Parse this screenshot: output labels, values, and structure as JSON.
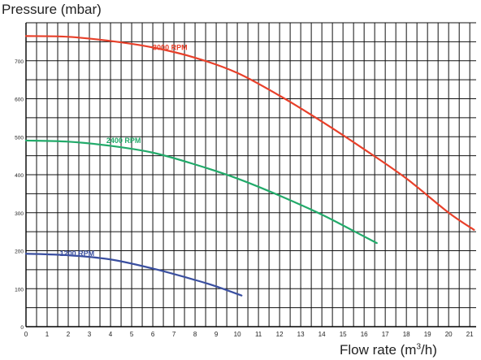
{
  "chart_data": {
    "type": "line",
    "title": "Pressure (mbar)",
    "xlabel": {
      "prefix": "Flow rate (m",
      "sup": "3",
      "suffix": "/h)"
    },
    "ylabel": "",
    "xlim": [
      0,
      21.3
    ],
    "ylim": [
      0,
      800
    ],
    "x_ticks": [
      "0",
      "1",
      "2",
      "3",
      "4",
      "5",
      "6",
      "7",
      "8",
      "9",
      "10",
      "11",
      "12",
      "13",
      "14",
      "15",
      "16",
      "17",
      "18",
      "19",
      "20",
      "21"
    ],
    "y_ticks": [
      "0",
      "100",
      "200",
      "300",
      "400",
      "500",
      "600",
      "700"
    ],
    "x_grid_step": 0.5,
    "y_grid_step": 50,
    "grid": true,
    "legend": "inline labels",
    "series": [
      {
        "name": "3000 RPM",
        "color": "#e8402a",
        "points": [
          [
            0,
            765
          ],
          [
            2,
            763
          ],
          [
            4,
            752
          ],
          [
            6,
            735
          ],
          [
            8,
            708
          ],
          [
            10,
            668
          ],
          [
            12,
            608
          ],
          [
            14,
            540
          ],
          [
            16,
            467
          ],
          [
            18,
            390
          ],
          [
            20,
            300
          ],
          [
            21.2,
            255
          ]
        ]
      },
      {
        "name": "2400 RPM",
        "color": "#22aa6a",
        "points": [
          [
            0,
            490
          ],
          [
            2,
            487
          ],
          [
            4,
            476
          ],
          [
            6,
            458
          ],
          [
            8,
            427
          ],
          [
            10,
            390
          ],
          [
            12,
            345
          ],
          [
            14,
            295
          ],
          [
            15.5,
            252
          ],
          [
            16.6,
            220
          ]
        ]
      },
      {
        "name": "1200 RPM",
        "color": "#3a4fa0",
        "points": [
          [
            0,
            192
          ],
          [
            2,
            188
          ],
          [
            4,
            177
          ],
          [
            6,
            153
          ],
          [
            8,
            123
          ],
          [
            9,
            106
          ],
          [
            10.2,
            82
          ]
        ]
      }
    ],
    "label_positions": [
      [
        6.0,
        735
      ],
      [
        3.8,
        490
      ],
      [
        1.6,
        192
      ]
    ]
  }
}
